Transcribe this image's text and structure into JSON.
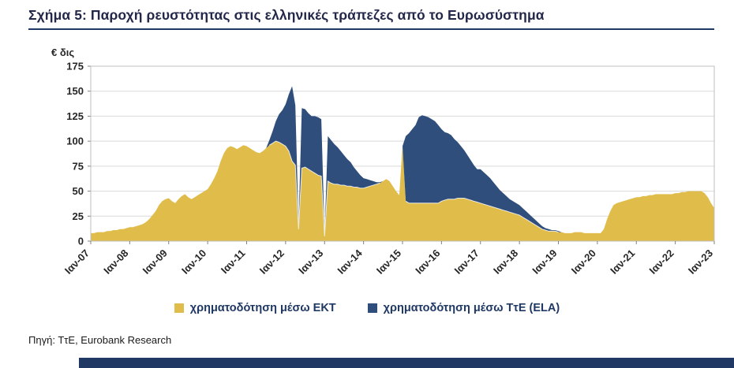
{
  "page": {
    "title": "Σχήμα 5: Παροχή ρευστότητας στις ελληνικές τράπεζες από το Ευρωσύστημα",
    "source": "Πηγή: ΤτΕ, Eurobank Research"
  },
  "colors": {
    "accent_navy": "#1F3864",
    "series_ecb": "#E0BC4A",
    "series_ela": "#2F4E7C",
    "grid": "#D9D9D9",
    "plot_border": "#BFBFBF",
    "tick": "#808080"
  },
  "chart_data": {
    "type": "area",
    "stacked": true,
    "title": "Παροχή ρευστότητας στις ελληνικές τράπεζες από το Ευρωσύστημα",
    "ylabel": "€ δις",
    "xlabel": "",
    "ylim": [
      0,
      175
    ],
    "yticks": [
      0,
      25,
      50,
      75,
      100,
      125,
      150,
      175
    ],
    "grid": true,
    "legend_position": "bottom",
    "x_start": "Ιαν-07",
    "x_end": "Ιαν-23",
    "x_frequency": "monthly",
    "x_tick_every": 12,
    "x_tick_labels": [
      "Ιαν-07",
      "Ιαν-08",
      "Ιαν-09",
      "Ιαν-10",
      "Ιαν-11",
      "Ιαν-12",
      "Ιαν-13",
      "Ιαν-14",
      "Ιαν-15",
      "Ιαν-16",
      "Ιαν-17",
      "Ιαν-18",
      "Ιαν-19",
      "Ιαν-20",
      "Ιαν-21",
      "Ιαν-22",
      "Ιαν-23"
    ],
    "series": [
      {
        "name": "χρηματοδότηση μέσω ΕΚΤ",
        "color": "#E0BC4A",
        "values": [
          8,
          8,
          9,
          9,
          9,
          10,
          10,
          11,
          11,
          12,
          12,
          13,
          14,
          14,
          15,
          16,
          17,
          19,
          22,
          26,
          30,
          36,
          40,
          42,
          43,
          40,
          38,
          42,
          45,
          47,
          44,
          42,
          44,
          46,
          48,
          50,
          52,
          57,
          63,
          70,
          80,
          88,
          93,
          95,
          94,
          92,
          94,
          96,
          95,
          93,
          91,
          89,
          88,
          90,
          93,
          96,
          98,
          100,
          99,
          97,
          95,
          90,
          80,
          76,
          12,
          73,
          74,
          72,
          70,
          68,
          66,
          65,
          5,
          60,
          58,
          57,
          57,
          56,
          56,
          55,
          55,
          54,
          54,
          53,
          53,
          54,
          55,
          56,
          57,
          58,
          60,
          62,
          60,
          55,
          50,
          46,
          95,
          40,
          38,
          38,
          38,
          38,
          38,
          38,
          38,
          38,
          38,
          38,
          40,
          41,
          42,
          42,
          42,
          43,
          43,
          43,
          42,
          41,
          40,
          39,
          38,
          37,
          36,
          35,
          34,
          33,
          32,
          31,
          30,
          29,
          28,
          27,
          26,
          24,
          22,
          20,
          18,
          16,
          14,
          12,
          11,
          10,
          10,
          10,
          9,
          9,
          8,
          8,
          8,
          9,
          9,
          9,
          8,
          8,
          8,
          8,
          8,
          8,
          12,
          22,
          30,
          36,
          38,
          39,
          40,
          41,
          42,
          43,
          44,
          44,
          45,
          45,
          46,
          46,
          47,
          47,
          47,
          47,
          47,
          47,
          48,
          48,
          49,
          49,
          50,
          50,
          50,
          50,
          50,
          48,
          44,
          38,
          33
        ]
      },
      {
        "name": "χρηματοδότηση μέσω ΤτΕ (ELA)",
        "color": "#2F4E7C",
        "values": [
          0,
          0,
          0,
          0,
          0,
          0,
          0,
          0,
          0,
          0,
          0,
          0,
          0,
          0,
          0,
          0,
          0,
          0,
          0,
          0,
          0,
          0,
          0,
          0,
          0,
          0,
          0,
          0,
          0,
          0,
          0,
          0,
          0,
          0,
          0,
          0,
          0,
          0,
          0,
          0,
          0,
          0,
          0,
          0,
          0,
          0,
          0,
          0,
          0,
          0,
          0,
          0,
          0,
          0,
          0,
          5,
          12,
          20,
          28,
          34,
          42,
          57,
          75,
          60,
          5,
          60,
          58,
          56,
          55,
          57,
          58,
          57,
          2,
          45,
          43,
          40,
          37,
          34,
          30,
          27,
          24,
          20,
          16,
          13,
          10,
          8,
          6,
          4,
          2,
          1,
          0,
          0,
          0,
          0,
          0,
          0,
          0,
          65,
          70,
          74,
          78,
          86,
          88,
          87,
          86,
          84,
          82,
          78,
          72,
          68,
          66,
          64,
          60,
          56,
          52,
          48,
          44,
          40,
          36,
          33,
          34,
          32,
          30,
          28,
          25,
          22,
          19,
          17,
          15,
          13,
          12,
          11,
          10,
          9,
          8,
          7,
          6,
          5,
          4,
          3,
          2,
          2,
          1,
          1,
          1,
          0,
          0,
          0,
          0,
          0,
          0,
          0,
          0,
          0,
          0,
          0,
          0,
          0,
          0,
          0,
          0,
          0,
          0,
          0,
          0,
          0,
          0,
          0,
          0,
          0,
          0,
          0,
          0,
          0,
          0,
          0,
          0,
          0,
          0,
          0,
          0,
          0,
          0,
          0,
          0,
          0,
          0,
          0,
          0,
          0,
          0,
          0,
          0
        ]
      }
    ]
  }
}
